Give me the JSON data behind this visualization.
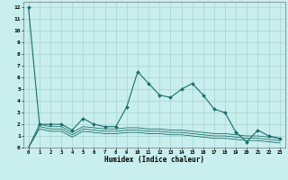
{
  "title": "",
  "xlabel": "Humidex (Indice chaleur)",
  "bg_color": "#c8eeed",
  "grid_color": "#a8d4d3",
  "line_color": "#1a6e6a",
  "xlim": [
    -0.5,
    23.5
  ],
  "ylim": [
    0,
    12.5
  ],
  "xticks": [
    0,
    1,
    2,
    3,
    4,
    5,
    6,
    7,
    8,
    9,
    10,
    11,
    12,
    13,
    14,
    15,
    16,
    17,
    18,
    19,
    20,
    21,
    22,
    23
  ],
  "yticks": [
    0,
    1,
    2,
    3,
    4,
    5,
    6,
    7,
    8,
    9,
    10,
    11,
    12
  ],
  "y_main": [
    12,
    2,
    2,
    2,
    1.5,
    2.5,
    2.0,
    1.8,
    1.8,
    3.5,
    6.5,
    5.5,
    4.5,
    4.3,
    5.0,
    5.5,
    4.5,
    3.3,
    3.0,
    1.3,
    0.5,
    1.5,
    1.0,
    0.8
  ],
  "y_low1": [
    0,
    2.0,
    1.8,
    1.8,
    1.3,
    1.8,
    1.7,
    1.6,
    1.6,
    1.7,
    1.7,
    1.6,
    1.6,
    1.5,
    1.5,
    1.4,
    1.3,
    1.2,
    1.2,
    1.1,
    1.0,
    1.0,
    0.9,
    0.8
  ],
  "y_low2": [
    0,
    1.8,
    1.6,
    1.6,
    1.1,
    1.6,
    1.5,
    1.4,
    1.4,
    1.5,
    1.5,
    1.4,
    1.4,
    1.3,
    1.3,
    1.2,
    1.1,
    1.0,
    1.0,
    0.9,
    0.8,
    0.8,
    0.7,
    0.6
  ],
  "y_low3": [
    0,
    1.6,
    1.4,
    1.4,
    0.9,
    1.4,
    1.3,
    1.2,
    1.2,
    1.3,
    1.3,
    1.2,
    1.2,
    1.1,
    1.1,
    1.0,
    0.9,
    0.8,
    0.8,
    0.7,
    0.6,
    0.6,
    0.5,
    0.4
  ]
}
